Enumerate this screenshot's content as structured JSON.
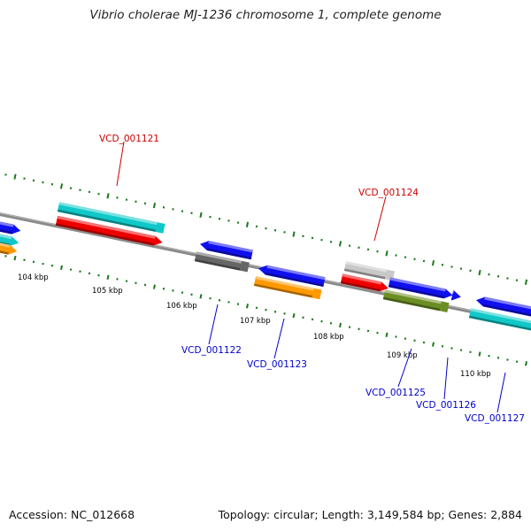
{
  "title": "Vibrio cholerae MJ-1236 chromosome 1, complete genome",
  "footer": {
    "accession": "Accession: NC_012668",
    "topology": "Topology: circular; Length: 3,149,584 bp; Genes: 2,884"
  },
  "colors": {
    "backbone": "#8a8a8a",
    "tick": "#1a7a1a",
    "label_forward": "#cc0000",
    "label_reverse": "#0000cc",
    "red": "#ee0000",
    "cyan": "#11c8c8",
    "blue": "#1010ee",
    "gray_dark": "#666666",
    "gray_light": "#c8c8c8",
    "orange": "#ff9900",
    "olive": "#6b8e23"
  },
  "tick_labels": [
    "104 kbp",
    "105 kbp",
    "106 kbp",
    "107 kbp",
    "108 kbp",
    "109 kbp",
    "110 kbp"
  ],
  "gene_labels": [
    {
      "id": "VCD_001121",
      "strand": "forward"
    },
    {
      "id": "VCD_001122",
      "strand": "reverse"
    },
    {
      "id": "VCD_001123",
      "strand": "reverse"
    },
    {
      "id": "VCD_001124",
      "strand": "forward"
    },
    {
      "id": "VCD_001125",
      "strand": "reverse"
    },
    {
      "id": "VCD_001126",
      "strand": "reverse"
    },
    {
      "id": "VCD_001127",
      "strand": "reverse"
    }
  ]
}
